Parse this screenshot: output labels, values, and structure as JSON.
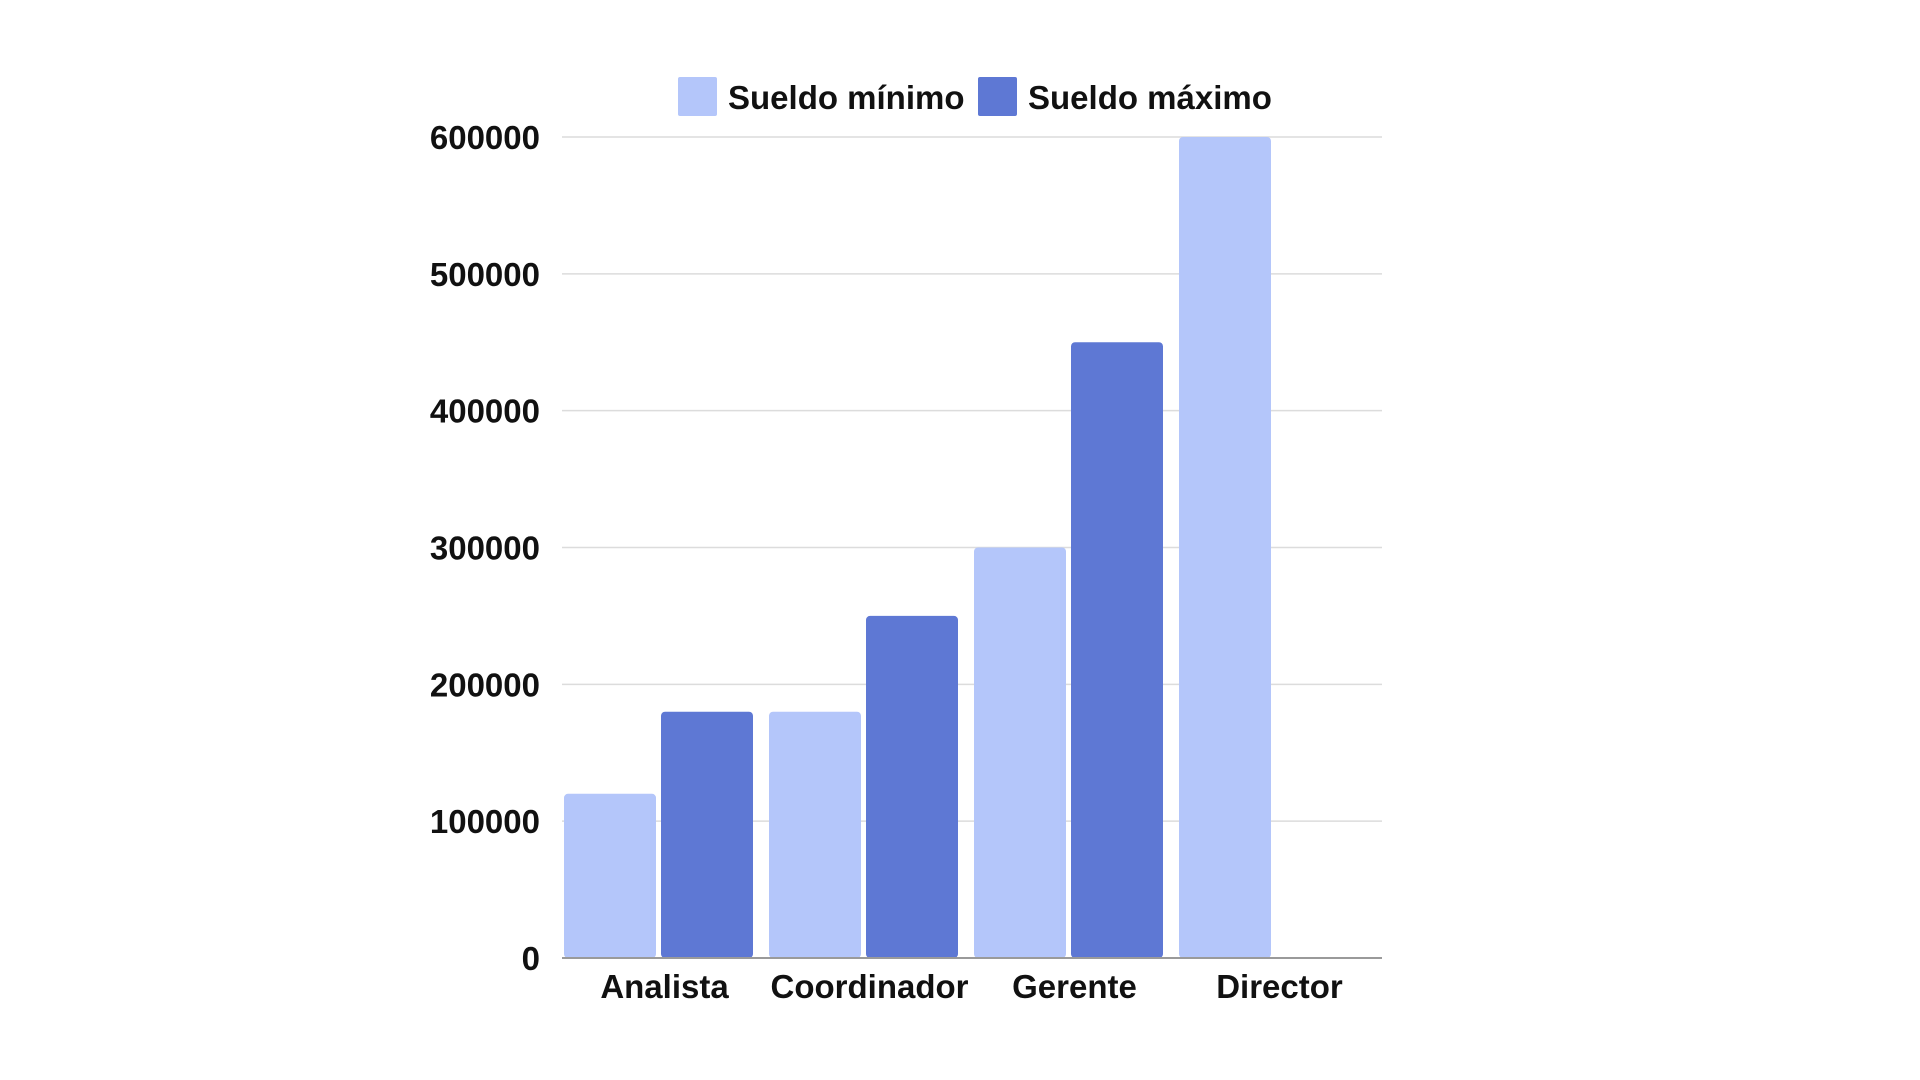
{
  "chart_data": {
    "type": "bar",
    "categories": [
      "Analista",
      "Coordinador",
      "Gerente",
      "Director"
    ],
    "series": [
      {
        "name": "Sueldo mínimo",
        "color": "#b4c6fa",
        "values": [
          120000,
          180000,
          300000,
          600000
        ]
      },
      {
        "name": "Sueldo máximo",
        "color": "#5e78d4",
        "values": [
          180000,
          250000,
          450000,
          null
        ]
      }
    ],
    "yticks": [
      "0",
      "100000",
      "200000",
      "300000",
      "400000",
      "500000",
      "600000"
    ],
    "ylim": [
      0,
      600000
    ],
    "title": "",
    "xlabel": "",
    "ylabel": "",
    "grid": true,
    "legend_position": "top-center"
  }
}
